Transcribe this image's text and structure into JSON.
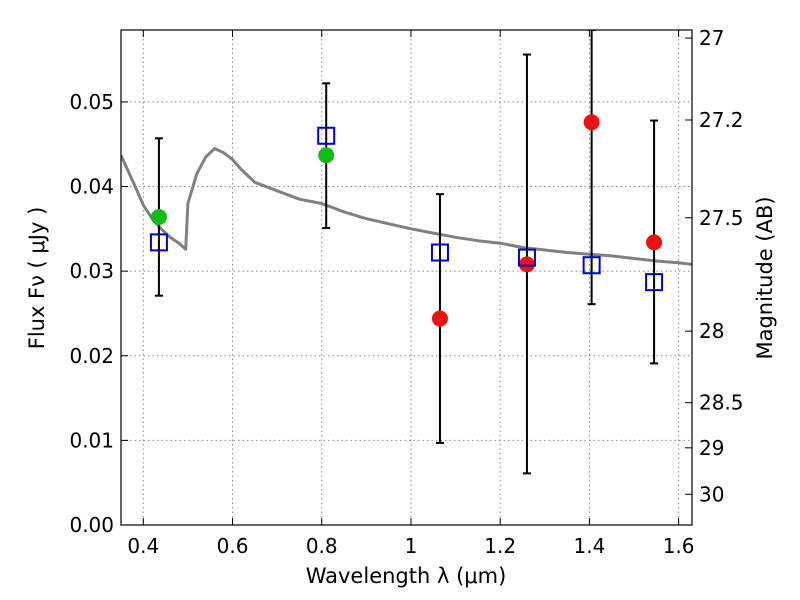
{
  "chart_data": {
    "type": "scatter",
    "xlabel": "Wavelength  λ (μm)",
    "ylabel": "Flux  Fν  ( μJy )",
    "y2label": "Magnitude (AB)",
    "xlim": [
      0.35,
      1.63
    ],
    "ylim": [
      0.0,
      0.0585
    ],
    "x_ticks": [
      "0.4",
      "0.6",
      "0.8",
      "1",
      "1.2",
      "1.4",
      "1.6"
    ],
    "y_ticks": [
      "0.00",
      "0.01",
      "0.02",
      "0.03",
      "0.04",
      "0.05"
    ],
    "y2_ticks": [
      "27",
      "27.2",
      "27.5",
      "28",
      "28.5",
      "29",
      "30"
    ],
    "grid": true,
    "colors": {
      "template": "#808080",
      "green": "#11bb11",
      "red": "#ee1111",
      "model": "#0000cc",
      "errorbar": "#000000"
    },
    "series": [
      {
        "type": "line",
        "color": "#808080",
        "x": [
          0.35,
          0.38,
          0.4,
          0.42,
          0.44,
          0.46,
          0.48,
          0.495,
          0.5,
          0.52,
          0.54,
          0.56,
          0.58,
          0.6,
          0.62,
          0.65,
          0.7,
          0.75,
          0.8,
          0.85,
          0.9,
          0.95,
          1.0,
          1.05,
          1.1,
          1.15,
          1.2,
          1.25,
          1.3,
          1.35,
          1.4,
          1.45,
          1.5,
          1.55,
          1.6,
          1.63
        ],
        "y": [
          0.0437,
          0.0402,
          0.0378,
          0.0362,
          0.035,
          0.034,
          0.0333,
          0.0326,
          0.038,
          0.0415,
          0.0435,
          0.0445,
          0.044,
          0.0432,
          0.042,
          0.0405,
          0.0395,
          0.0385,
          0.038,
          0.037,
          0.0362,
          0.0356,
          0.035,
          0.0345,
          0.034,
          0.0336,
          0.0333,
          0.0328,
          0.0325,
          0.0322,
          0.032,
          0.0318,
          0.0315,
          0.0312,
          0.031,
          0.0308
        ]
      },
      {
        "type": "errorbar",
        "color": "#000000",
        "x": [
          0.435,
          0.81,
          1.065,
          1.26,
          1.405,
          1.545
        ],
        "y": [
          0.0334,
          0.046,
          0.0322,
          0.0316,
          0.0307,
          0.0287
        ],
        "y_low": [
          0.0271,
          0.0351,
          0.0097,
          0.0061,
          0.0261,
          0.0191
        ],
        "y_high": [
          0.0457,
          0.0522,
          0.0391,
          0.0556,
          0.0585,
          0.0478
        ]
      },
      {
        "type": "scatter",
        "marker": "circle",
        "color": "#11bb11",
        "x": [
          0.435,
          0.81
        ],
        "y": [
          0.0364,
          0.0437
        ]
      },
      {
        "type": "scatter",
        "marker": "circle",
        "color": "#ee1111",
        "x": [
          1.065,
          1.26,
          1.405,
          1.545
        ],
        "y": [
          0.0244,
          0.0308,
          0.0476,
          0.0334
        ]
      },
      {
        "type": "scatter",
        "marker": "open-square",
        "color": "#0000cc",
        "x": [
          0.435,
          0.81,
          1.065,
          1.26,
          1.405,
          1.545
        ],
        "y": [
          0.0334,
          0.046,
          0.0322,
          0.0316,
          0.0307,
          0.0287
        ]
      }
    ]
  }
}
